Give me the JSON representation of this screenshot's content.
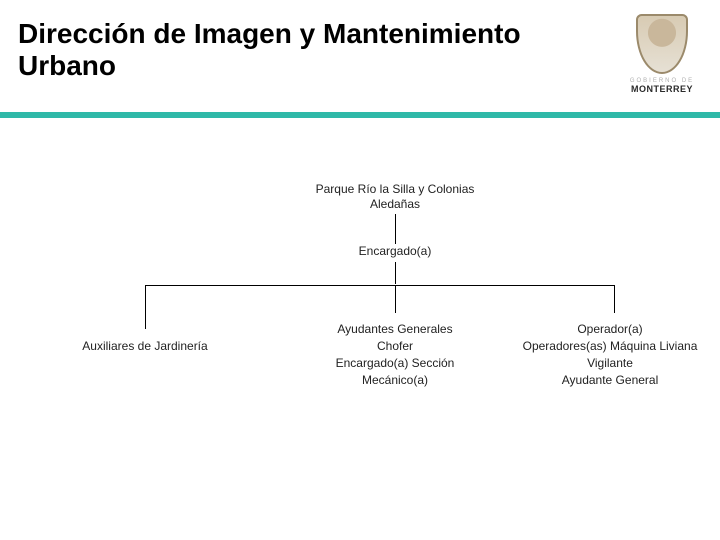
{
  "title": "Dirección de Imagen y Mantenimiento Urbano",
  "logo": {
    "small_text": "GOBIERNO DE",
    "text": "MONTERREY"
  },
  "accent_color": "#2fb9a8",
  "chart": {
    "type": "tree",
    "line_color": "#000000",
    "font_size": 12,
    "font_color": "#222222",
    "root": {
      "label": "Parque Río la Silla y Colonias Aledañas"
    },
    "mid": {
      "label": "Encargado(a)"
    },
    "leaf_left": {
      "lines": [
        "Auxiliares de Jardinería"
      ]
    },
    "leaf_center": {
      "lines": [
        "Ayudantes Generales",
        "Chofer",
        "Encargado(a) Sección",
        "Mecánico(a)"
      ]
    },
    "leaf_right": {
      "lines": [
        "Operador(a)",
        "Operadores(as) Máquina Liviana",
        "Vigilante",
        "Ayudante General"
      ]
    }
  }
}
